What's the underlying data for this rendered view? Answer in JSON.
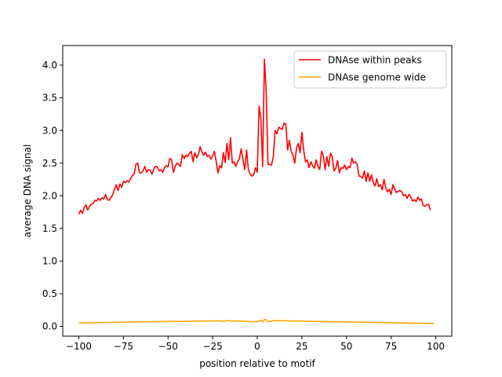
{
  "chart_data": {
    "type": "line",
    "title": "",
    "xlabel": "position relative to motif",
    "ylabel": "average DNA signal",
    "xlim": [
      -109,
      109
    ],
    "ylim": [
      -0.15,
      4.3
    ],
    "xticks": [
      -100,
      -75,
      -50,
      -25,
      0,
      25,
      50,
      75,
      100
    ],
    "yticks": [
      0.0,
      0.5,
      1.0,
      1.5,
      2.0,
      2.5,
      3.0,
      3.5,
      4.0
    ],
    "xtick_labels": [
      "−100",
      "−75",
      "−50",
      "−25",
      "0",
      "25",
      "50",
      "75",
      "100"
    ],
    "ytick_labels": [
      "0.0",
      "0.5",
      "1.0",
      "1.5",
      "2.0",
      "2.5",
      "3.0",
      "3.5",
      "4.0"
    ],
    "grid": false,
    "legend_position": "top-right",
    "x": {
      "start": -100,
      "end": 99
    },
    "series": [
      {
        "name": "DNAse within peaks",
        "color": "#ff0000",
        "values": [
          1.72,
          1.78,
          1.73,
          1.82,
          1.86,
          1.78,
          1.84,
          1.87,
          1.88,
          1.93,
          1.92,
          1.96,
          1.93,
          1.97,
          1.95,
          2.02,
          1.94,
          1.93,
          1.97,
          2.02,
          2.1,
          2.17,
          2.08,
          2.18,
          2.13,
          2.22,
          2.2,
          2.23,
          2.21,
          2.26,
          2.31,
          2.33,
          2.48,
          2.5,
          2.35,
          2.35,
          2.38,
          2.45,
          2.36,
          2.4,
          2.39,
          2.33,
          2.41,
          2.45,
          2.44,
          2.38,
          2.4,
          2.36,
          2.43,
          2.46,
          2.44,
          2.57,
          2.55,
          2.36,
          2.45,
          2.5,
          2.48,
          2.45,
          2.63,
          2.57,
          2.62,
          2.6,
          2.65,
          2.68,
          2.52,
          2.66,
          2.58,
          2.63,
          2.75,
          2.67,
          2.62,
          2.67,
          2.6,
          2.62,
          2.56,
          2.61,
          2.68,
          2.52,
          2.35,
          2.46,
          2.43,
          2.66,
          2.51,
          2.8,
          2.55,
          2.89,
          2.5,
          2.52,
          2.45,
          2.52,
          2.57,
          2.72,
          2.55,
          2.4,
          2.7,
          2.4,
          2.33,
          2.3,
          2.32,
          2.43,
          2.36,
          3.37,
          3.2,
          2.45,
          4.09,
          3.6,
          2.48,
          2.48,
          2.47,
          2.6,
          3.0,
          2.95,
          3.05,
          3.03,
          3.02,
          3.11,
          3.1,
          2.7,
          2.85,
          2.68,
          2.62,
          2.5,
          2.73,
          2.8,
          2.66,
          2.97,
          2.7,
          2.52,
          2.55,
          2.43,
          2.52,
          2.46,
          2.42,
          2.55,
          2.45,
          2.4,
          2.68,
          2.62,
          2.4,
          2.6,
          2.45,
          2.65,
          2.6,
          2.38,
          2.42,
          2.54,
          2.35,
          2.43,
          2.42,
          2.47,
          2.4,
          2.45,
          2.43,
          2.58,
          2.5,
          2.52,
          2.48,
          2.3,
          2.3,
          2.27,
          2.38,
          2.22,
          2.35,
          2.22,
          2.32,
          2.2,
          2.15,
          2.26,
          2.14,
          2.17,
          2.09,
          2.25,
          2.12,
          2.06,
          2.1,
          2.02,
          2.17,
          2.1,
          2.05,
          2.07,
          2.08,
          2.06,
          2.0,
          2.02,
          1.96,
          2.02,
          1.98,
          1.92,
          1.94,
          1.91,
          1.98,
          1.93,
          1.95,
          1.85,
          1.84,
          1.86,
          1.87,
          1.78
        ]
      },
      {
        "name": "DNAse genome wide",
        "color": "#ffa500",
        "values": [
          0.052,
          0.053,
          0.054,
          0.053,
          0.055,
          0.054,
          0.056,
          0.055,
          0.057,
          0.056,
          0.058,
          0.057,
          0.058,
          0.059,
          0.06,
          0.059,
          0.061,
          0.06,
          0.062,
          0.061,
          0.063,
          0.062,
          0.064,
          0.063,
          0.064,
          0.065,
          0.066,
          0.065,
          0.067,
          0.066,
          0.068,
          0.067,
          0.069,
          0.068,
          0.07,
          0.069,
          0.07,
          0.071,
          0.07,
          0.071,
          0.072,
          0.071,
          0.072,
          0.073,
          0.072,
          0.073,
          0.074,
          0.073,
          0.074,
          0.075,
          0.074,
          0.075,
          0.076,
          0.075,
          0.076,
          0.077,
          0.076,
          0.077,
          0.078,
          0.077,
          0.078,
          0.079,
          0.078,
          0.079,
          0.08,
          0.079,
          0.08,
          0.081,
          0.08,
          0.081,
          0.082,
          0.081,
          0.082,
          0.083,
          0.082,
          0.083,
          0.084,
          0.083,
          0.084,
          0.085,
          0.078,
          0.08,
          0.082,
          0.086,
          0.088,
          0.084,
          0.08,
          0.082,
          0.079,
          0.083,
          0.081,
          0.079,
          0.08,
          0.078,
          0.076,
          0.074,
          0.072,
          0.07,
          0.068,
          0.074,
          0.072,
          0.08,
          0.09,
          0.07,
          0.105,
          0.1,
          0.072,
          0.076,
          0.082,
          0.085,
          0.088,
          0.086,
          0.089,
          0.087,
          0.086,
          0.088,
          0.085,
          0.084,
          0.083,
          0.082,
          0.083,
          0.081,
          0.082,
          0.08,
          0.081,
          0.079,
          0.08,
          0.078,
          0.079,
          0.078,
          0.077,
          0.078,
          0.076,
          0.077,
          0.075,
          0.076,
          0.074,
          0.075,
          0.073,
          0.074,
          0.072,
          0.073,
          0.071,
          0.072,
          0.07,
          0.071,
          0.069,
          0.07,
          0.068,
          0.069,
          0.067,
          0.068,
          0.066,
          0.067,
          0.065,
          0.066,
          0.064,
          0.065,
          0.063,
          0.064,
          0.062,
          0.063,
          0.061,
          0.062,
          0.06,
          0.061,
          0.059,
          0.06,
          0.058,
          0.059,
          0.057,
          0.058,
          0.056,
          0.057,
          0.055,
          0.056,
          0.054,
          0.055,
          0.053,
          0.054,
          0.052,
          0.053,
          0.051,
          0.052,
          0.05,
          0.051,
          0.049,
          0.05,
          0.048,
          0.049,
          0.047,
          0.048,
          0.046,
          0.047,
          0.045,
          0.046,
          0.044,
          0.045,
          0.045,
          0.044
        ]
      }
    ]
  }
}
